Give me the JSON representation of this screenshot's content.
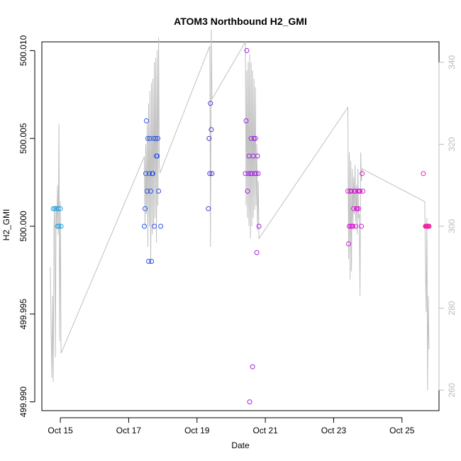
{
  "chart_data": {
    "type": "scatter",
    "title": "ATOM3 Northbound H2_GMI",
    "xlabel": "Date",
    "ylabel": "H2_GMI",
    "x_unit": "date",
    "xlim": [
      "2016-10-14 11:00",
      "2016-10-26 02:00"
    ],
    "ylim": [
      499.9895,
      500.0105
    ],
    "y2lim": [
      255,
      345
    ],
    "x_ticks": [
      {
        "value": "2016-10-15",
        "label": "Oct 15"
      },
      {
        "value": "2016-10-17",
        "label": "Oct 17"
      },
      {
        "value": "2016-10-19",
        "label": "Oct 19"
      },
      {
        "value": "2016-10-21",
        "label": "Oct 21"
      },
      {
        "value": "2016-10-23",
        "label": "Oct 23"
      },
      {
        "value": "2016-10-25",
        "label": "Oct 25"
      }
    ],
    "y_ticks": [
      {
        "value": 499.99,
        "label": "499.990"
      },
      {
        "value": 499.995,
        "label": "499.995"
      },
      {
        "value": 500.0,
        "label": "500.000"
      },
      {
        "value": 500.005,
        "label": "500.005"
      },
      {
        "value": 500.01,
        "label": "500.010"
      }
    ],
    "y2_ticks": [
      {
        "value": 260,
        "label": "260"
      },
      {
        "value": 280,
        "label": "280"
      },
      {
        "value": 300,
        "label": "300"
      },
      {
        "value": 320,
        "label": "320"
      },
      {
        "value": 340,
        "label": "340"
      }
    ],
    "grid": false,
    "series": [
      {
        "color": "#29a3e0",
        "points": [
          [
            "2016-10-14 19:00",
            500.001
          ],
          [
            "2016-10-14 20:00",
            500.001
          ],
          [
            "2016-10-14 21:00",
            500.001
          ],
          [
            "2016-10-14 22:00",
            500.0
          ],
          [
            "2016-10-14 22:30",
            500.001
          ],
          [
            "2016-10-14 23:00",
            500.0
          ],
          [
            "2016-10-15 00:00",
            500.001
          ],
          [
            "2016-10-15 00:30",
            500.0
          ]
        ]
      },
      {
        "color": "#2a55e6",
        "points": [
          [
            "2016-10-17 11:00",
            500.0
          ],
          [
            "2016-10-17 11:30",
            500.001
          ],
          [
            "2016-10-17 12:00",
            500.003
          ],
          [
            "2016-10-17 12:30",
            500.006
          ],
          [
            "2016-10-17 13:00",
            500.002
          ],
          [
            "2016-10-17 13:30",
            500.005
          ],
          [
            "2016-10-17 14:00",
            499.998
          ],
          [
            "2016-10-17 14:30",
            500.003
          ],
          [
            "2016-10-17 15:00",
            500.005
          ],
          [
            "2016-10-17 15:30",
            500.002
          ],
          [
            "2016-10-17 16:00",
            499.998
          ],
          [
            "2016-10-17 16:30",
            500.003
          ],
          [
            "2016-10-17 17:00",
            500.003
          ],
          [
            "2016-10-17 17:30",
            500.005
          ],
          [
            "2016-10-17 18:00",
            500.0
          ],
          [
            "2016-10-17 19:00",
            500.005
          ],
          [
            "2016-10-17 19:30",
            500.004
          ],
          [
            "2016-10-17 20:00",
            500.004
          ],
          [
            "2016-10-17 20:30",
            500.005
          ],
          [
            "2016-10-17 21:00",
            500.002
          ],
          [
            "2016-10-17 22:30",
            500.0
          ]
        ]
      },
      {
        "color": "#4a2fd6",
        "points": [
          [
            "2016-10-19 08:00",
            500.001
          ],
          [
            "2016-10-19 08:30",
            500.005
          ],
          [
            "2016-10-19 09:00",
            500.003
          ],
          [
            "2016-10-19 09:30",
            500.007
          ],
          [
            "2016-10-19 10:00",
            500.0055
          ],
          [
            "2016-10-19 10:30",
            500.003
          ]
        ]
      },
      {
        "color": "#a226e0",
        "points": [
          [
            "2016-10-20 10:00",
            500.003
          ],
          [
            "2016-10-20 10:30",
            500.006
          ],
          [
            "2016-10-20 11:00",
            500.01
          ],
          [
            "2016-10-20 11:30",
            500.002
          ],
          [
            "2016-10-20 12:00",
            500.003
          ],
          [
            "2016-10-20 12:30",
            500.004
          ],
          [
            "2016-10-20 13:00",
            499.99
          ],
          [
            "2016-10-20 13:30",
            500.003
          ],
          [
            "2016-10-20 14:00",
            500.005
          ],
          [
            "2016-10-20 14:30",
            500.003
          ],
          [
            "2016-10-20 15:00",
            499.992
          ],
          [
            "2016-10-20 15:30",
            500.004
          ],
          [
            "2016-10-20 16:00",
            500.005
          ],
          [
            "2016-10-20 16:30",
            500.003
          ],
          [
            "2016-10-20 17:00",
            500.005
          ],
          [
            "2016-10-20 17:30",
            500.003
          ],
          [
            "2016-10-20 18:00",
            499.9985
          ],
          [
            "2016-10-20 18:30",
            500.004
          ],
          [
            "2016-10-20 19:00",
            500.003
          ],
          [
            "2016-10-20 19:30",
            500.0
          ]
        ]
      },
      {
        "color": "#d81ed6",
        "points": [
          [
            "2016-10-23 10:00",
            500.002
          ],
          [
            "2016-10-23 10:30",
            499.999
          ],
          [
            "2016-10-23 11:00",
            500.0
          ],
          [
            "2016-10-23 11:30",
            500.002
          ],
          [
            "2016-10-23 12:00",
            500.0
          ],
          [
            "2016-10-23 12:30",
            500.002
          ],
          [
            "2016-10-23 13:00",
            500.0
          ],
          [
            "2016-10-23 13:30",
            500.0
          ],
          [
            "2016-10-23 14:00",
            500.001
          ],
          [
            "2016-10-23 14:30",
            500.002
          ],
          [
            "2016-10-23 15:00",
            500.002
          ],
          [
            "2016-10-23 15:30",
            500.0
          ],
          [
            "2016-10-23 16:00",
            500.001
          ],
          [
            "2016-10-23 16:30",
            500.001
          ],
          [
            "2016-10-23 17:00",
            500.002
          ],
          [
            "2016-10-23 17:30",
            500.001
          ],
          [
            "2016-10-23 18:00",
            500.002
          ],
          [
            "2016-10-23 18:30",
            500.002
          ],
          [
            "2016-10-23 19:30",
            500.0
          ],
          [
            "2016-10-23 20:00",
            500.003
          ],
          [
            "2016-10-23 20:30",
            500.002
          ]
        ]
      },
      {
        "color": "#ef1ea0",
        "points": [
          [
            "2016-10-25 15:00",
            500.003
          ],
          [
            "2016-10-25 16:30",
            500.0
          ],
          [
            "2016-10-25 17:00",
            500.0
          ],
          [
            "2016-10-25 17:30",
            500.0
          ],
          [
            "2016-10-25 18:00",
            500.0
          ],
          [
            "2016-10-25 18:30",
            500.0
          ],
          [
            "2016-10-25 19:00",
            500.0
          ]
        ]
      }
    ],
    "secondary_line": {
      "color": "#c0c0c0",
      "axis_color": "#bbbbbb",
      "points": [
        [
          "2016-10-14 17:00",
          290
        ],
        [
          "2016-10-14 17:30",
          275
        ],
        [
          "2016-10-14 18:00",
          263
        ],
        [
          "2016-10-14 18:30",
          283
        ],
        [
          "2016-10-14 19:00",
          262
        ],
        [
          "2016-10-14 19:30",
          300
        ],
        [
          "2016-10-14 20:00",
          305
        ],
        [
          "2016-10-14 20:30",
          268
        ],
        [
          "2016-10-14 21:00",
          305
        ],
        [
          "2016-10-14 21:30",
          300
        ],
        [
          "2016-10-14 22:00",
          310
        ],
        [
          "2016-10-14 22:30",
          298
        ],
        [
          "2016-10-14 23:00",
          325
        ],
        [
          "2016-10-14 23:30",
          272
        ],
        [
          "2016-10-15 00:00",
          306
        ],
        [
          "2016-10-15 00:30",
          269
        ],
        [
          "2016-10-17 11:00",
          317
        ],
        [
          "2016-10-17 11:30",
          300
        ],
        [
          "2016-10-17 12:00",
          320
        ],
        [
          "2016-10-17 12:30",
          303
        ],
        [
          "2016-10-17 13:00",
          325
        ],
        [
          "2016-10-17 13:30",
          295
        ],
        [
          "2016-10-17 14:00",
          330
        ],
        [
          "2016-10-17 14:30",
          300
        ],
        [
          "2016-10-17 15:00",
          333
        ],
        [
          "2016-10-17 15:30",
          291
        ],
        [
          "2016-10-17 16:00",
          335
        ],
        [
          "2016-10-17 16:30",
          298
        ],
        [
          "2016-10-17 17:00",
          336
        ],
        [
          "2016-10-17 17:30",
          300
        ],
        [
          "2016-10-17 18:00",
          340
        ],
        [
          "2016-10-17 18:30",
          302
        ],
        [
          "2016-10-17 19:00",
          341
        ],
        [
          "2016-10-17 19:30",
          296
        ],
        [
          "2016-10-17 20:00",
          343
        ],
        [
          "2016-10-17 20:30",
          305
        ],
        [
          "2016-10-17 21:00",
          346
        ],
        [
          "2016-10-17 21:30",
          315
        ],
        [
          "2016-10-17 22:00",
          313
        ],
        [
          "2016-10-19 09:00",
          344
        ],
        [
          "2016-10-19 09:30",
          295
        ],
        [
          "2016-10-19 10:00",
          348
        ],
        [
          "2016-10-19 10:30",
          331
        ],
        [
          "2016-10-20 10:00",
          345
        ],
        [
          "2016-10-20 10:30",
          305
        ],
        [
          "2016-10-20 11:00",
          338
        ],
        [
          "2016-10-20 11:30",
          302
        ],
        [
          "2016-10-20 12:00",
          340
        ],
        [
          "2016-10-20 12:30",
          300
        ],
        [
          "2016-10-20 13:00",
          342
        ],
        [
          "2016-10-20 13:30",
          297
        ],
        [
          "2016-10-20 14:00",
          340
        ],
        [
          "2016-10-20 14:30",
          300
        ],
        [
          "2016-10-20 15:00",
          338
        ],
        [
          "2016-10-20 15:30",
          302
        ],
        [
          "2016-10-20 16:00",
          336
        ],
        [
          "2016-10-20 16:30",
          304
        ],
        [
          "2016-10-20 17:00",
          334
        ],
        [
          "2016-10-20 17:30",
          305
        ],
        [
          "2016-10-20 18:00",
          320
        ],
        [
          "2016-10-20 18:30",
          299
        ],
        [
          "2016-10-20 19:00",
          311
        ],
        [
          "2016-10-20 19:30",
          297
        ],
        [
          "2016-10-23 10:00",
          329
        ],
        [
          "2016-10-23 10:30",
          292
        ],
        [
          "2016-10-23 11:00",
          318
        ],
        [
          "2016-10-23 11:30",
          287
        ],
        [
          "2016-10-23 12:00",
          316
        ],
        [
          "2016-10-23 12:30",
          289
        ],
        [
          "2016-10-23 13:00",
          314
        ],
        [
          "2016-10-23 13:30",
          300
        ],
        [
          "2016-10-23 14:00",
          312
        ],
        [
          "2016-10-23 14:30",
          303
        ],
        [
          "2016-10-23 15:00",
          315
        ],
        [
          "2016-10-23 15:30",
          301
        ],
        [
          "2016-10-23 16:00",
          310
        ],
        [
          "2016-10-23 16:30",
          298
        ],
        [
          "2016-10-23 17:00",
          314
        ],
        [
          "2016-10-23 17:30",
          302
        ],
        [
          "2016-10-23 18:00",
          303
        ],
        [
          "2016-10-23 18:30",
          283
        ],
        [
          "2016-10-23 19:00",
          318
        ],
        [
          "2016-10-23 19:30",
          311
        ],
        [
          "2016-10-23 20:00",
          314
        ],
        [
          "2016-10-25 16:00",
          306
        ],
        [
          "2016-10-25 16:30",
          290
        ],
        [
          "2016-10-25 17:00",
          279
        ],
        [
          "2016-10-25 17:30",
          302
        ],
        [
          "2016-10-25 18:00",
          260
        ],
        [
          "2016-10-25 18:30",
          283
        ],
        [
          "2016-10-25 19:00",
          270
        ]
      ]
    }
  }
}
